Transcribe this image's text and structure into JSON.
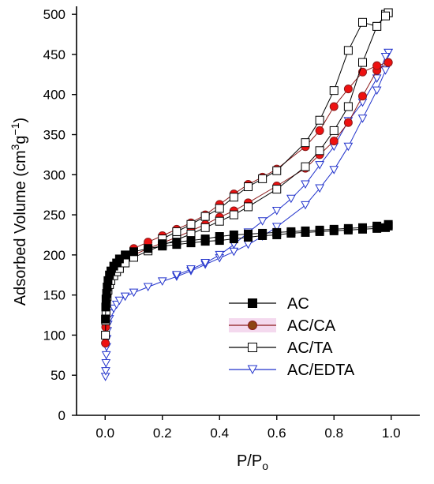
{
  "chart_data": {
    "type": "scatter",
    "title": "",
    "xlabel": "P/P",
    "xlabel_sub": "o",
    "ylabel_parts": [
      "Adsorbed Volume (cm",
      "3",
      "g",
      "−1",
      ")"
    ],
    "xlim": [
      -0.1,
      1.1
    ],
    "ylim": [
      0,
      510
    ],
    "xticks": [
      0.0,
      0.2,
      0.4,
      0.6,
      0.8,
      1.0
    ],
    "xtick_labels": [
      "0.0",
      "0.2",
      "0.4",
      "0.6",
      "0.8",
      "1.0"
    ],
    "yticks": [
      0,
      50,
      100,
      150,
      200,
      250,
      300,
      350,
      400,
      450,
      500
    ],
    "ytick_labels": [
      "0",
      "50",
      "100",
      "150",
      "200",
      "250",
      "300",
      "350",
      "400",
      "450",
      "500"
    ],
    "grid": false,
    "legend_position": "lower-right",
    "series": [
      {
        "name": "AC",
        "marker": "filled-square",
        "color": "#000000",
        "fill": "#000000",
        "adsorption": [
          [
            0.001,
            120
          ],
          [
            0.002,
            135
          ],
          [
            0.003,
            145
          ],
          [
            0.005,
            152
          ],
          [
            0.007,
            160
          ],
          [
            0.01,
            168
          ],
          [
            0.015,
            175
          ],
          [
            0.02,
            180
          ],
          [
            0.03,
            186
          ],
          [
            0.04,
            190
          ],
          [
            0.05,
            195
          ],
          [
            0.07,
            200
          ],
          [
            0.1,
            204
          ],
          [
            0.15,
            208
          ],
          [
            0.2,
            211
          ],
          [
            0.25,
            213
          ],
          [
            0.3,
            215
          ],
          [
            0.35,
            217
          ],
          [
            0.4,
            218
          ],
          [
            0.45,
            220
          ],
          [
            0.5,
            222
          ],
          [
            0.55,
            224
          ],
          [
            0.6,
            225
          ],
          [
            0.65,
            227
          ],
          [
            0.7,
            228
          ],
          [
            0.75,
            229
          ],
          [
            0.8,
            230
          ],
          [
            0.85,
            231
          ],
          [
            0.9,
            232
          ],
          [
            0.95,
            233
          ],
          [
            0.98,
            234
          ],
          [
            0.99,
            236
          ]
        ],
        "desorption": [
          [
            0.99,
            238
          ],
          [
            0.95,
            236
          ],
          [
            0.9,
            234
          ],
          [
            0.85,
            233
          ],
          [
            0.8,
            232
          ],
          [
            0.75,
            231
          ],
          [
            0.7,
            230
          ],
          [
            0.65,
            229
          ],
          [
            0.6,
            228
          ],
          [
            0.55,
            227
          ],
          [
            0.5,
            226
          ],
          [
            0.45,
            225
          ],
          [
            0.4,
            223
          ],
          [
            0.35,
            220
          ],
          [
            0.3,
            218
          ],
          [
            0.25,
            216
          ],
          [
            0.2,
            214
          ]
        ]
      },
      {
        "name": "AC/CA",
        "marker": "filled-circle",
        "color": "#8b1a1a",
        "fill": "#ee1111",
        "adsorption": [
          [
            0.001,
            90
          ],
          [
            0.002,
            110
          ],
          [
            0.003,
            125
          ],
          [
            0.005,
            140
          ],
          [
            0.007,
            150
          ],
          [
            0.01,
            158
          ],
          [
            0.015,
            165
          ],
          [
            0.02,
            170
          ],
          [
            0.03,
            176
          ],
          [
            0.04,
            181
          ],
          [
            0.05,
            185
          ],
          [
            0.07,
            192
          ],
          [
            0.1,
            200
          ],
          [
            0.15,
            208
          ],
          [
            0.2,
            215
          ],
          [
            0.25,
            222
          ],
          [
            0.3,
            230
          ],
          [
            0.35,
            238
          ],
          [
            0.4,
            247
          ],
          [
            0.45,
            255
          ],
          [
            0.5,
            265
          ],
          [
            0.6,
            286
          ],
          [
            0.7,
            308
          ],
          [
            0.75,
            325
          ],
          [
            0.8,
            342
          ],
          [
            0.85,
            365
          ],
          [
            0.9,
            398
          ],
          [
            0.95,
            430
          ],
          [
            0.99,
            440
          ]
        ],
        "desorption": [
          [
            0.99,
            440
          ],
          [
            0.95,
            436
          ],
          [
            0.9,
            428
          ],
          [
            0.85,
            407
          ],
          [
            0.8,
            385
          ],
          [
            0.75,
            355
          ],
          [
            0.7,
            335
          ],
          [
            0.6,
            307
          ],
          [
            0.55,
            297
          ],
          [
            0.5,
            288
          ],
          [
            0.45,
            276
          ],
          [
            0.4,
            263
          ],
          [
            0.35,
            250
          ],
          [
            0.3,
            240
          ],
          [
            0.25,
            232
          ],
          [
            0.2,
            224
          ],
          [
            0.15,
            216
          ],
          [
            0.1,
            208
          ]
        ]
      },
      {
        "name": "AC/TA",
        "marker": "open-square",
        "color": "#000000",
        "fill": "#ffffff",
        "adsorption": [
          [
            0.001,
            100
          ],
          [
            0.002,
            118
          ],
          [
            0.003,
            130
          ],
          [
            0.005,
            140
          ],
          [
            0.007,
            148
          ],
          [
            0.01,
            156
          ],
          [
            0.015,
            163
          ],
          [
            0.02,
            168
          ],
          [
            0.03,
            174
          ],
          [
            0.04,
            179
          ],
          [
            0.05,
            183
          ],
          [
            0.07,
            190
          ],
          [
            0.1,
            197
          ],
          [
            0.15,
            205
          ],
          [
            0.2,
            212
          ],
          [
            0.25,
            219
          ],
          [
            0.3,
            226
          ],
          [
            0.35,
            234
          ],
          [
            0.4,
            242
          ],
          [
            0.45,
            250
          ],
          [
            0.5,
            260
          ],
          [
            0.6,
            282
          ],
          [
            0.7,
            310
          ],
          [
            0.75,
            330
          ],
          [
            0.8,
            355
          ],
          [
            0.85,
            385
          ],
          [
            0.9,
            440
          ],
          [
            0.95,
            485
          ],
          [
            0.98,
            500
          ],
          [
            0.99,
            502
          ]
        ],
        "desorption": [
          [
            0.99,
            502
          ],
          [
            0.98,
            498
          ],
          [
            0.95,
            485
          ],
          [
            0.9,
            490
          ],
          [
            0.85,
            455
          ],
          [
            0.8,
            405
          ],
          [
            0.75,
            368
          ],
          [
            0.7,
            340
          ],
          [
            0.6,
            305
          ],
          [
            0.55,
            295
          ],
          [
            0.5,
            285
          ],
          [
            0.45,
            272
          ],
          [
            0.4,
            258
          ],
          [
            0.35,
            248
          ],
          [
            0.3,
            238
          ],
          [
            0.25,
            229
          ],
          [
            0.2,
            220
          ]
        ]
      },
      {
        "name": "AC/EDTA",
        "marker": "open-triangle-down",
        "color": "#2233cc",
        "fill": "#ffffff",
        "adsorption": [
          [
            0.001,
            48
          ],
          [
            0.002,
            55
          ],
          [
            0.003,
            65
          ],
          [
            0.004,
            75
          ],
          [
            0.005,
            85
          ],
          [
            0.006,
            95
          ],
          [
            0.008,
            105
          ],
          [
            0.01,
            113
          ],
          [
            0.015,
            120
          ],
          [
            0.02,
            127
          ],
          [
            0.03,
            133
          ],
          [
            0.04,
            138
          ],
          [
            0.05,
            143
          ],
          [
            0.07,
            148
          ],
          [
            0.1,
            153
          ],
          [
            0.15,
            160
          ],
          [
            0.2,
            167
          ],
          [
            0.25,
            173
          ],
          [
            0.3,
            180
          ],
          [
            0.35,
            188
          ],
          [
            0.4,
            196
          ],
          [
            0.45,
            204
          ],
          [
            0.5,
            213
          ],
          [
            0.55,
            223
          ],
          [
            0.6,
            235
          ],
          [
            0.7,
            262
          ],
          [
            0.75,
            283
          ],
          [
            0.8,
            306
          ],
          [
            0.85,
            335
          ],
          [
            0.9,
            370
          ],
          [
            0.95,
            405
          ],
          [
            0.98,
            430
          ],
          [
            0.99,
            452
          ]
        ],
        "desorption": [
          [
            0.99,
            452
          ],
          [
            0.98,
            447
          ],
          [
            0.95,
            420
          ],
          [
            0.9,
            390
          ],
          [
            0.85,
            367
          ],
          [
            0.8,
            335
          ],
          [
            0.75,
            312
          ],
          [
            0.7,
            288
          ],
          [
            0.65,
            270
          ],
          [
            0.6,
            255
          ],
          [
            0.55,
            242
          ],
          [
            0.5,
            228
          ],
          [
            0.45,
            213
          ],
          [
            0.4,
            200
          ],
          [
            0.35,
            190
          ],
          [
            0.3,
            182
          ],
          [
            0.25,
            175
          ]
        ]
      }
    ]
  }
}
